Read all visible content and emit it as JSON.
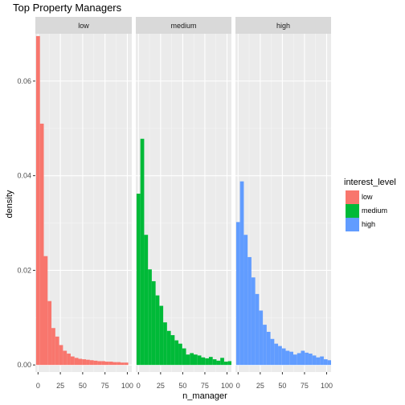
{
  "chart_data": {
    "type": "bar",
    "title": "Top Property Managers",
    "xlabel": "n_manager",
    "ylabel": "density",
    "xlim": [
      -3,
      105
    ],
    "ylim": [
      -0.0015,
      0.07
    ],
    "x_ticks": [
      "0",
      "25",
      "50",
      "75",
      "100"
    ],
    "y_ticks": [
      "0.00",
      "0.02",
      "0.04",
      "0.06"
    ],
    "bin_width": 4.3,
    "legend": {
      "title": "interest_level",
      "placement": "right",
      "items": [
        {
          "label": "low",
          "color": "#F8766D"
        },
        {
          "label": "medium",
          "color": "#00BA38"
        },
        {
          "label": "high",
          "color": "#619CFF"
        }
      ]
    },
    "panels": [
      {
        "label": "low",
        "color": "#F8766D",
        "values": [
          0.0695,
          0.051,
          0.023,
          0.0135,
          0.0078,
          0.006,
          0.0042,
          0.003,
          0.0024,
          0.0018,
          0.0015,
          0.0013,
          0.0012,
          0.0011,
          0.001,
          0.0009,
          0.0008,
          0.0008,
          0.0007,
          0.0007,
          0.0006,
          0.0006,
          0.0005,
          0.0005
        ]
      },
      {
        "label": "medium",
        "color": "#00BA38",
        "values": [
          0.0362,
          0.0478,
          0.0275,
          0.0202,
          0.0177,
          0.0147,
          0.0125,
          0.009,
          0.0072,
          0.0063,
          0.0052,
          0.0045,
          0.0035,
          0.0022,
          0.0025,
          0.0022,
          0.002,
          0.0016,
          0.0014,
          0.0017,
          0.0012,
          0.0009,
          0.0015,
          0.0007,
          0.0008
        ]
      },
      {
        "label": "high",
        "color": "#619CFF",
        "values": [
          0.0302,
          0.0388,
          0.0275,
          0.0228,
          0.0185,
          0.015,
          0.0115,
          0.0085,
          0.007,
          0.0055,
          0.0045,
          0.004,
          0.0035,
          0.003,
          0.0028,
          0.0022,
          0.0025,
          0.003,
          0.0026,
          0.0024,
          0.002,
          0.0016,
          0.0018,
          0.0012,
          0.001
        ]
      }
    ]
  }
}
